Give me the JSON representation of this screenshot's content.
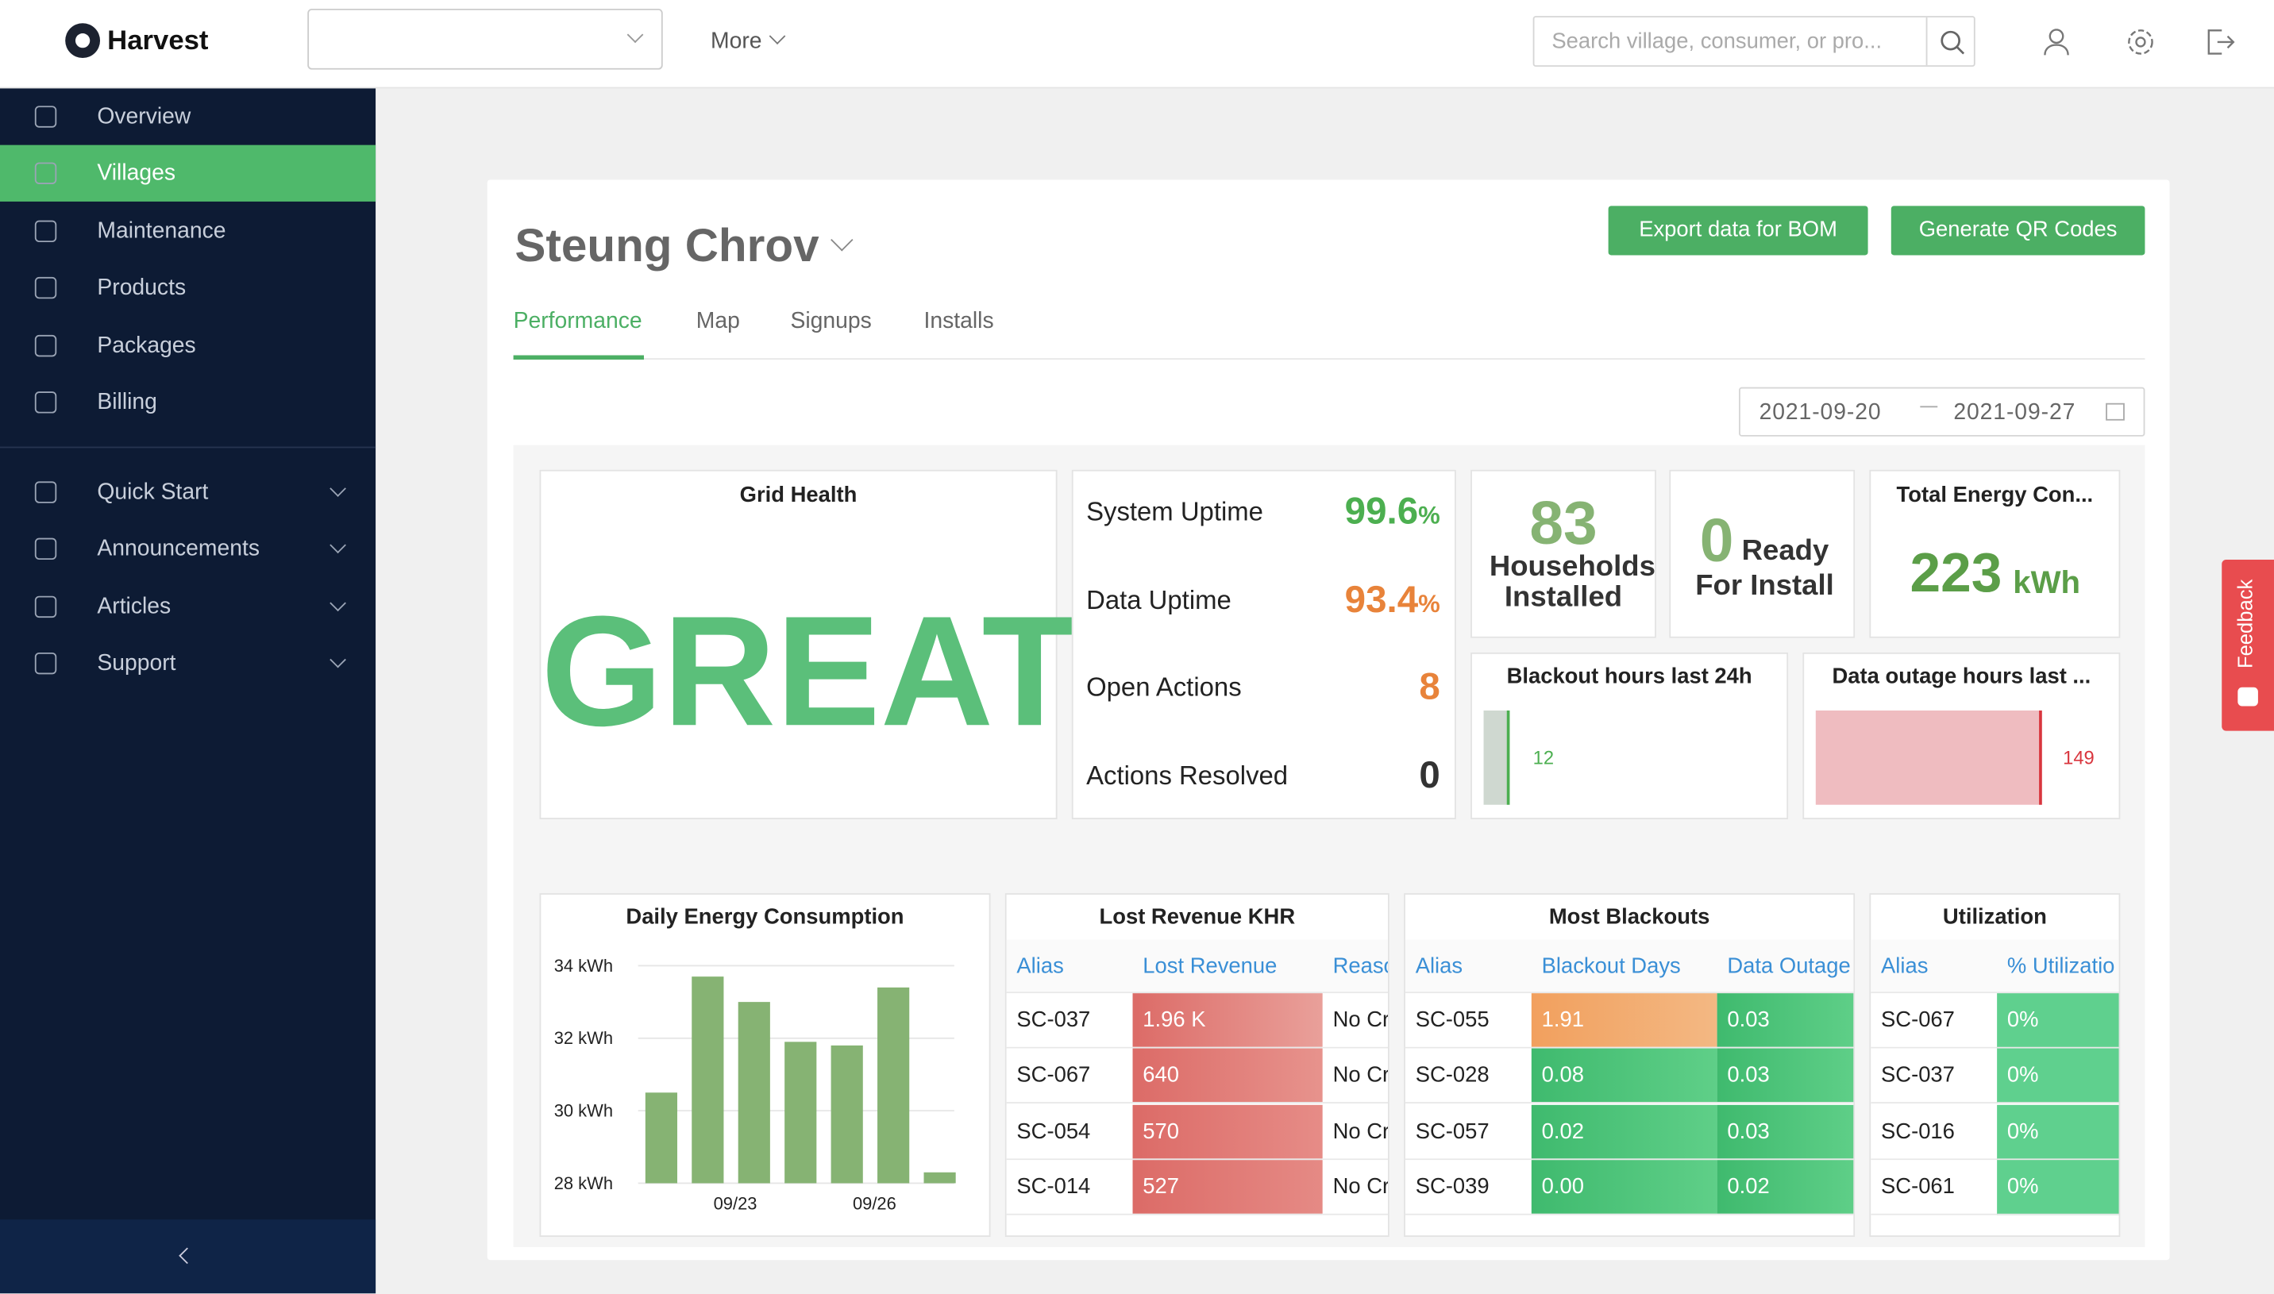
{
  "header": {
    "brand": "Harvest",
    "more": "More",
    "search_placeholder": "Search village, consumer, or pro..."
  },
  "sidebar": {
    "items": [
      "Overview",
      "Villages",
      "Maintenance",
      "Products",
      "Packages",
      "Billing"
    ],
    "sections": [
      "Quick Start",
      "Announcements",
      "Articles",
      "Support"
    ]
  },
  "village": {
    "name": "Steung Chrov",
    "buttons": [
      "Export data for BOM",
      "Generate QR Codes"
    ],
    "tabs": [
      "Performance",
      "Map",
      "Signups",
      "Installs"
    ],
    "date_range": [
      "2021-09-20",
      "2021-09-27"
    ]
  },
  "grid_health": {
    "title": "Grid Health",
    "status": "GREAT"
  },
  "stats": [
    {
      "label": "System Uptime",
      "value": 99.6,
      "unit": "%"
    },
    {
      "label": "Data Uptime",
      "value": 93.4,
      "unit": "%"
    },
    {
      "label": "Open Actions",
      "value": 8
    },
    {
      "label": "Actions Resolved",
      "value": 0
    }
  ],
  "households": {
    "count": 83,
    "label": "Households Installed"
  },
  "ready": {
    "count": 0,
    "label_1": "Ready",
    "label_2": "For Install"
  },
  "energy": {
    "title": "Total Energy Con...",
    "value": 223,
    "unit": "kWh"
  },
  "blackout": {
    "title": "Blackout hours last 24h",
    "value": 12
  },
  "outage": {
    "title": "Data outage hours last ...",
    "value": 149
  },
  "daily_energy": {
    "type": "bar",
    "title": "Daily Energy Consumption",
    "categories": [
      null,
      null,
      "09/23",
      null,
      null,
      "09/26",
      null
    ],
    "values": [
      30.5,
      33.7,
      33.0,
      31.9,
      31.8,
      33.4,
      28.3
    ],
    "color": "#86b373",
    "ylim": [
      28,
      34.4
    ],
    "yticks": [
      {
        "value": 28,
        "label": "28 kWh"
      },
      {
        "value": 30,
        "label": "30 kWh"
      },
      {
        "value": 32,
        "label": "32 kWh"
      },
      {
        "value": 34,
        "label": "34 kWh"
      }
    ],
    "grid": true
  },
  "tables": {
    "lost_revenue": {
      "title": "Lost Revenue KHR",
      "columns": [
        "Alias",
        "Lost Revenue",
        "Reaso"
      ],
      "rows": [
        [
          "SC-037",
          "1.96 K",
          "No Cr"
        ],
        [
          "SC-067",
          "640",
          "No Cr"
        ],
        [
          "SC-054",
          "570",
          "No Cr"
        ],
        [
          "SC-014",
          "527",
          "No Cr"
        ]
      ]
    },
    "blackouts": {
      "title": "Most Blackouts",
      "columns": [
        "Alias",
        "Blackout Days",
        "Data Outage"
      ],
      "rows": [
        [
          "SC-055",
          "1.91",
          "0.03"
        ],
        [
          "SC-028",
          "0.08",
          "0.03"
        ],
        [
          "SC-057",
          "0.02",
          "0.03"
        ],
        [
          "SC-039",
          "0.00",
          "0.02"
        ]
      ]
    },
    "utilization": {
      "title": "Utilization",
      "columns": [
        "Alias",
        "% Utilizatio"
      ],
      "rows": [
        [
          "SC-067",
          "0%"
        ],
        [
          "SC-037",
          "0%"
        ],
        [
          "SC-016",
          "0%"
        ],
        [
          "SC-061",
          "0%"
        ]
      ]
    }
  },
  "feedback": "Feedback"
}
